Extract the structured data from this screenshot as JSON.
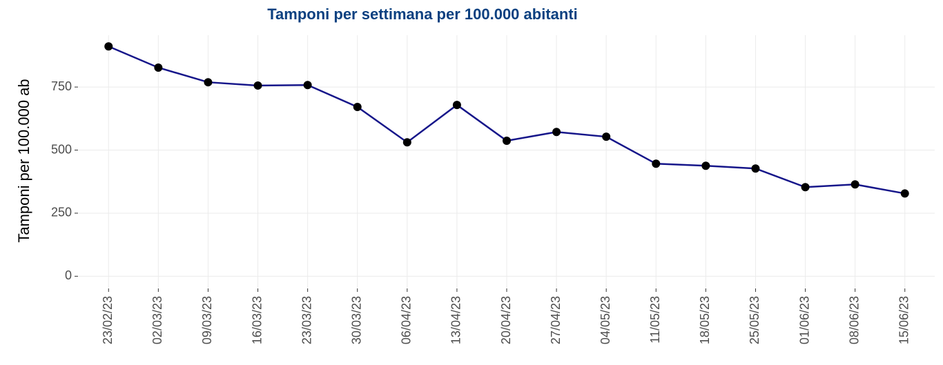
{
  "chart_data": {
    "type": "line",
    "title": "Tamponi per settimana per 100.000 abitanti",
    "y_label": "Tamponi per 100.000 ab",
    "categories": [
      "23/02/23",
      "02/03/23",
      "09/03/23",
      "16/03/23",
      "23/03/23",
      "30/03/23",
      "06/04/23",
      "13/04/23",
      "20/04/23",
      "27/04/23",
      "04/05/23",
      "11/05/23",
      "18/05/23",
      "25/05/23",
      "01/06/23",
      "08/06/23",
      "15/06/23"
    ],
    "series": [
      {
        "name": "Tamponi",
        "color": "#16168a",
        "marker_color": "#000000",
        "values": [
          911,
          827,
          769,
          756,
          758,
          671,
          531,
          679,
          537,
          572,
          553,
          446,
          438,
          427,
          353,
          364,
          328
        ]
      }
    ],
    "ylim": [
      -45.5,
      955.5
    ],
    "yticks": [
      0,
      250,
      500,
      750
    ],
    "grid": true
  }
}
